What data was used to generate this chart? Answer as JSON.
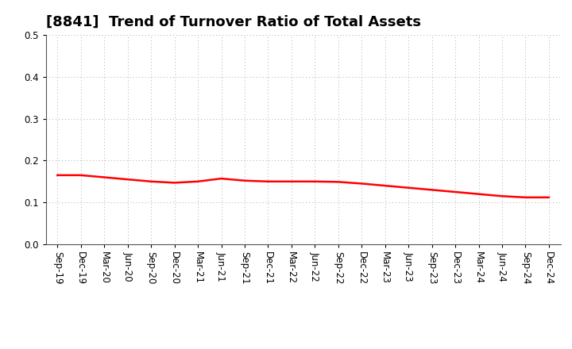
{
  "title": "[8841]  Trend of Turnover Ratio of Total Assets",
  "x_labels": [
    "Sep-19",
    "Dec-19",
    "Mar-20",
    "Jun-20",
    "Sep-20",
    "Dec-20",
    "Mar-21",
    "Jun-21",
    "Sep-21",
    "Dec-21",
    "Mar-22",
    "Jun-22",
    "Sep-22",
    "Dec-22",
    "Mar-23",
    "Jun-23",
    "Sep-23",
    "Dec-23",
    "Mar-24",
    "Jun-24",
    "Sep-24",
    "Dec-24"
  ],
  "y_values": [
    0.165,
    0.165,
    0.16,
    0.155,
    0.15,
    0.147,
    0.15,
    0.157,
    0.152,
    0.15,
    0.15,
    0.15,
    0.149,
    0.145,
    0.14,
    0.135,
    0.13,
    0.125,
    0.12,
    0.115,
    0.112,
    0.112
  ],
  "line_color": "#ff0000",
  "line_width": 1.8,
  "ylim": [
    0.0,
    0.5
  ],
  "yticks": [
    0.0,
    0.1,
    0.2,
    0.3,
    0.4,
    0.5
  ],
  "grid_color": "#aaaaaa",
  "bg_color": "#ffffff",
  "title_fontsize": 13,
  "tick_fontsize": 8.5
}
